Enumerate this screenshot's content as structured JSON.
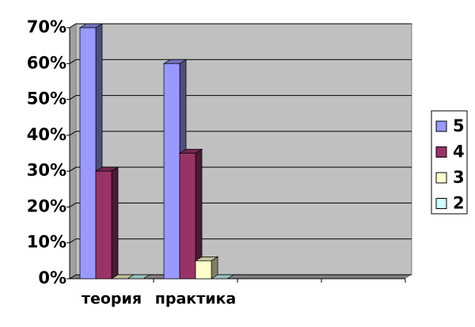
{
  "chart_data": {
    "type": "bar3d",
    "categories": [
      "теория",
      "практика",
      null,
      null
    ],
    "series": [
      {
        "name": "5",
        "color": "#9999ff",
        "values": [
          70,
          60,
          null,
          null
        ]
      },
      {
        "name": "4",
        "color": "#993366",
        "values": [
          30,
          35,
          null,
          null
        ]
      },
      {
        "name": "3",
        "color": "#ffffcc",
        "values": [
          0,
          5,
          null,
          null
        ]
      },
      {
        "name": "2",
        "color": "#ccffff",
        "values": [
          0,
          0,
          null,
          null
        ]
      }
    ],
    "ylim": [
      0,
      70
    ],
    "yticks": [
      {
        "value": 0,
        "label": "0%"
      },
      {
        "value": 10,
        "label": "10%"
      },
      {
        "value": 20,
        "label": "20%"
      },
      {
        "value": 30,
        "label": "30%"
      },
      {
        "value": 40,
        "label": "40%"
      },
      {
        "value": 50,
        "label": "50%"
      },
      {
        "value": 60,
        "label": "60%"
      },
      {
        "value": 70,
        "label": "70%"
      }
    ],
    "grid": true,
    "legend": "right"
  }
}
